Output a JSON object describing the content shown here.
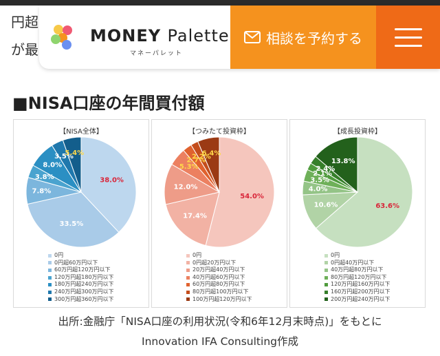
{
  "background_text": {
    "line1": "円超",
    "line2": "が最"
  },
  "header": {
    "logo_name_bold": "MONEY",
    "logo_name_light": "Palette",
    "logo_kana": "マネーパレット",
    "reserve_label": "相談を予約する"
  },
  "section": {
    "title": "■NISA口座の年間買付額"
  },
  "chart_data": [
    {
      "type": "pie",
      "title": "【NISA全体】",
      "slices": [
        {
          "label": "0円",
          "value": 38.0,
          "color": "#bdd7ee",
          "text": "38.0%"
        },
        {
          "label": "0円超60万円以下",
          "value": 33.5,
          "color": "#a9cbe8",
          "text": "33.5%"
        },
        {
          "label": "60万円超120万円以下",
          "value": 7.8,
          "color": "#7cb6dd",
          "text": "7.8%"
        },
        {
          "label": "120万円超180万円以下",
          "value": 3.8,
          "color": "#4aa3cf",
          "text": "3.8%"
        },
        {
          "label": "180万円超240万円以下",
          "value": 8.0,
          "color": "#2b8fc3",
          "text": "8.0%"
        },
        {
          "label": "240万円超300万円以下",
          "value": 3.5,
          "color": "#1f78ad",
          "text": "3.5%"
        },
        {
          "label": "300万円超360万円以下",
          "value": 5.4,
          "color": "#135e8c",
          "text": "5.4%"
        }
      ]
    },
    {
      "type": "pie",
      "title": "【つみたて投資枠】",
      "slices": [
        {
          "label": "0円",
          "value": 54.0,
          "color": "#f5c6bd",
          "text": "54.0%"
        },
        {
          "label": "0円超20万円以下",
          "value": 17.4,
          "color": "#f2b2a4",
          "text": "17.4%"
        },
        {
          "label": "20万円超40万円以下",
          "value": 12.0,
          "color": "#ee9c88",
          "text": "12.0%"
        },
        {
          "label": "40万円超60万円以下",
          "value": 5.3,
          "color": "#ec8060",
          "text": "5.3%"
        },
        {
          "label": "60万円超80万円以下",
          "value": 2.7,
          "color": "#e0622f",
          "text": "2.7%"
        },
        {
          "label": "80万円超100万円以下",
          "value": 2.2,
          "color": "#c44d1c",
          "text": "2.2%"
        },
        {
          "label": "100万円超120万円以下",
          "value": 6.4,
          "color": "#9b3a14",
          "text": "6.4%"
        }
      ]
    },
    {
      "type": "pie",
      "title": "【成長投資枠】",
      "slices": [
        {
          "label": "0円",
          "value": 63.6,
          "color": "#c6e0c0",
          "text": "63.6%"
        },
        {
          "label": "0円超40万円以下",
          "value": 10.6,
          "color": "#b1d3a6",
          "text": "10.6%"
        },
        {
          "label": "40万円超80万円以下",
          "value": 4.0,
          "color": "#94c487",
          "text": "4.0%"
        },
        {
          "label": "80万円超120万円以下",
          "value": 3.5,
          "color": "#6eb059",
          "text": "3.5%"
        },
        {
          "label": "120万円超160万円以下",
          "value": 2.1,
          "color": "#4f9b3d",
          "text": "2.1%"
        },
        {
          "label": "160万円超200万円以下",
          "value": 2.4,
          "color": "#367f2a",
          "text": "2.4%"
        },
        {
          "label": "200万円超240万円以下",
          "value": 13.8,
          "color": "#23611c",
          "text": "13.8%"
        }
      ]
    }
  ],
  "caption": {
    "line1": "出所:金融庁「NISA口座の利用状況(令和6年12月末時点)」をもとに",
    "line2": "Innovation IFA Consulting作成"
  }
}
